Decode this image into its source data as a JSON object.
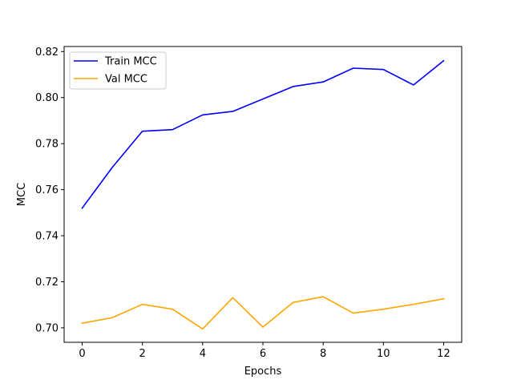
{
  "chart_data": {
    "type": "line",
    "title": "",
    "xlabel": "Epochs",
    "ylabel": "MCC",
    "x": [
      0,
      1,
      2,
      3,
      4,
      5,
      6,
      7,
      8,
      9,
      10,
      11,
      12
    ],
    "xlim": [
      -0.6,
      12.6
    ],
    "ylim": [
      0.6937,
      0.8222
    ],
    "xticks": [
      0,
      2,
      4,
      6,
      8,
      10,
      12
    ],
    "xtick_labels": [
      "0",
      "2",
      "4",
      "6",
      "8",
      "10",
      "12"
    ],
    "yticks": [
      0.7,
      0.72,
      0.74,
      0.76,
      0.78,
      0.8,
      0.82
    ],
    "ytick_labels": [
      "0.70",
      "0.72",
      "0.74",
      "0.76",
      "0.78",
      "0.80",
      "0.82"
    ],
    "grid": false,
    "legend_position": "top-left",
    "series": [
      {
        "name": "Train MCC",
        "color": "#0000ff",
        "values": [
          0.752,
          0.7697,
          0.7854,
          0.7861,
          0.7925,
          0.794,
          0.7994,
          0.8048,
          0.8068,
          0.8128,
          0.8122,
          0.8055,
          0.816
        ]
      },
      {
        "name": "Val MCC",
        "color": "#ffa500",
        "values": [
          0.702,
          0.7044,
          0.7102,
          0.7081,
          0.6995,
          0.7131,
          0.7003,
          0.711,
          0.7135,
          0.7064,
          0.7081,
          0.7102,
          0.7126
        ]
      }
    ]
  }
}
